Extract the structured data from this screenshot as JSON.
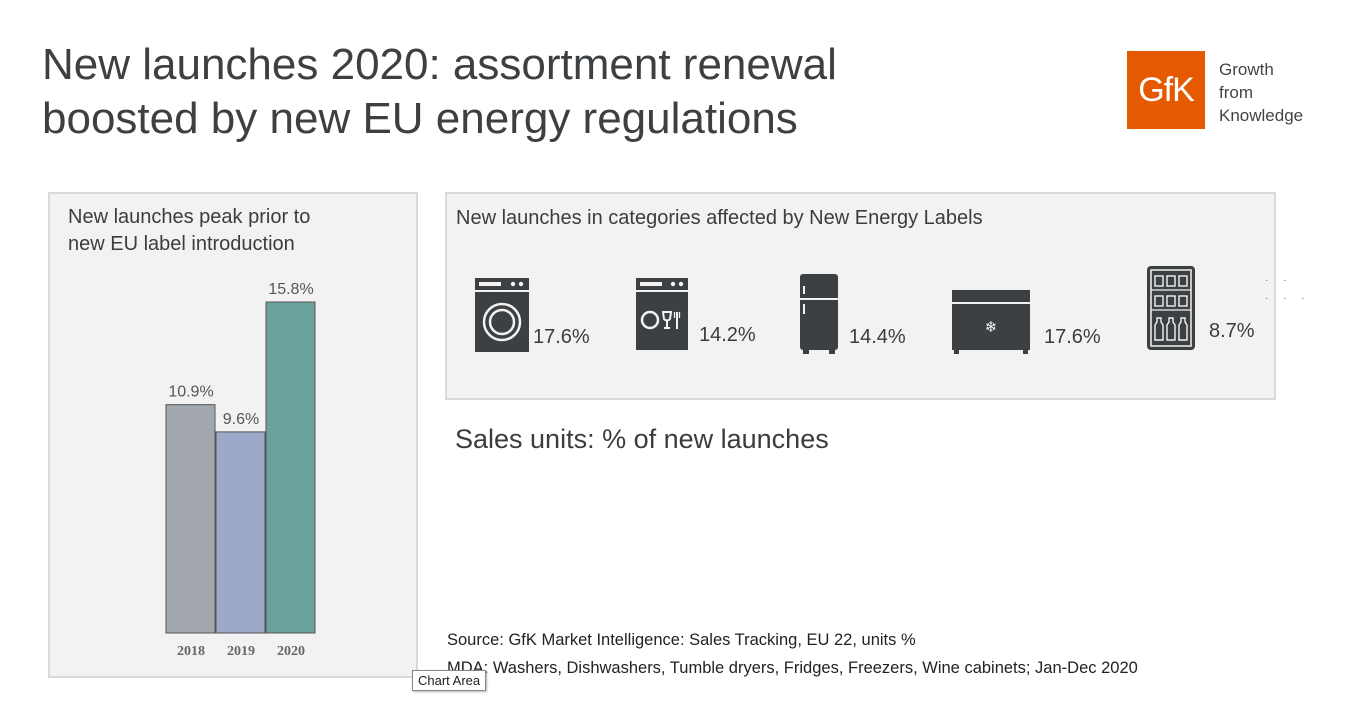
{
  "title_lines": [
    "New launches 2020: assortment renewal",
    "boosted by new EU energy regulations"
  ],
  "logo": {
    "mark": "GfK",
    "tagline": [
      "Growth",
      "from",
      "Knowledge"
    ],
    "color": "#e55a00"
  },
  "left_panel": {
    "title_lines": [
      "New launches peak prior to",
      "new EU label introduction"
    ]
  },
  "chart_data": {
    "type": "bar",
    "categories": [
      "2018",
      "2019",
      "2020"
    ],
    "values": [
      10.9,
      9.6,
      15.8
    ],
    "labels": [
      "10.9%",
      "9.6%",
      "15.8%"
    ],
    "colors": [
      "#a3a8ae",
      "#9da9c8",
      "#6ba19c"
    ],
    "ylim": [
      0,
      15.8
    ]
  },
  "right_panel": {
    "title": "New launches in categories affected by New Energy Labels",
    "categories": [
      {
        "icon": "washer-icon",
        "value": "17.6%"
      },
      {
        "icon": "dishwasher-icon",
        "value": "14.2%"
      },
      {
        "icon": "fridge-icon",
        "value": "14.4%"
      },
      {
        "icon": "freezer-icon",
        "value": "17.6%"
      },
      {
        "icon": "wine-cabinet-icon",
        "value": "8.7%"
      }
    ]
  },
  "subtitle": "Sales units: % of new launches",
  "source_lines": [
    "Source: GfK Market Intelligence: Sales Tracking, EU 22, units %",
    "MDA: Washers, Dishwashers, Tumble dryers, Fridges, Freezers, Wine cabinets; Jan-Dec 2020"
  ],
  "tooltip": "Chart Area"
}
